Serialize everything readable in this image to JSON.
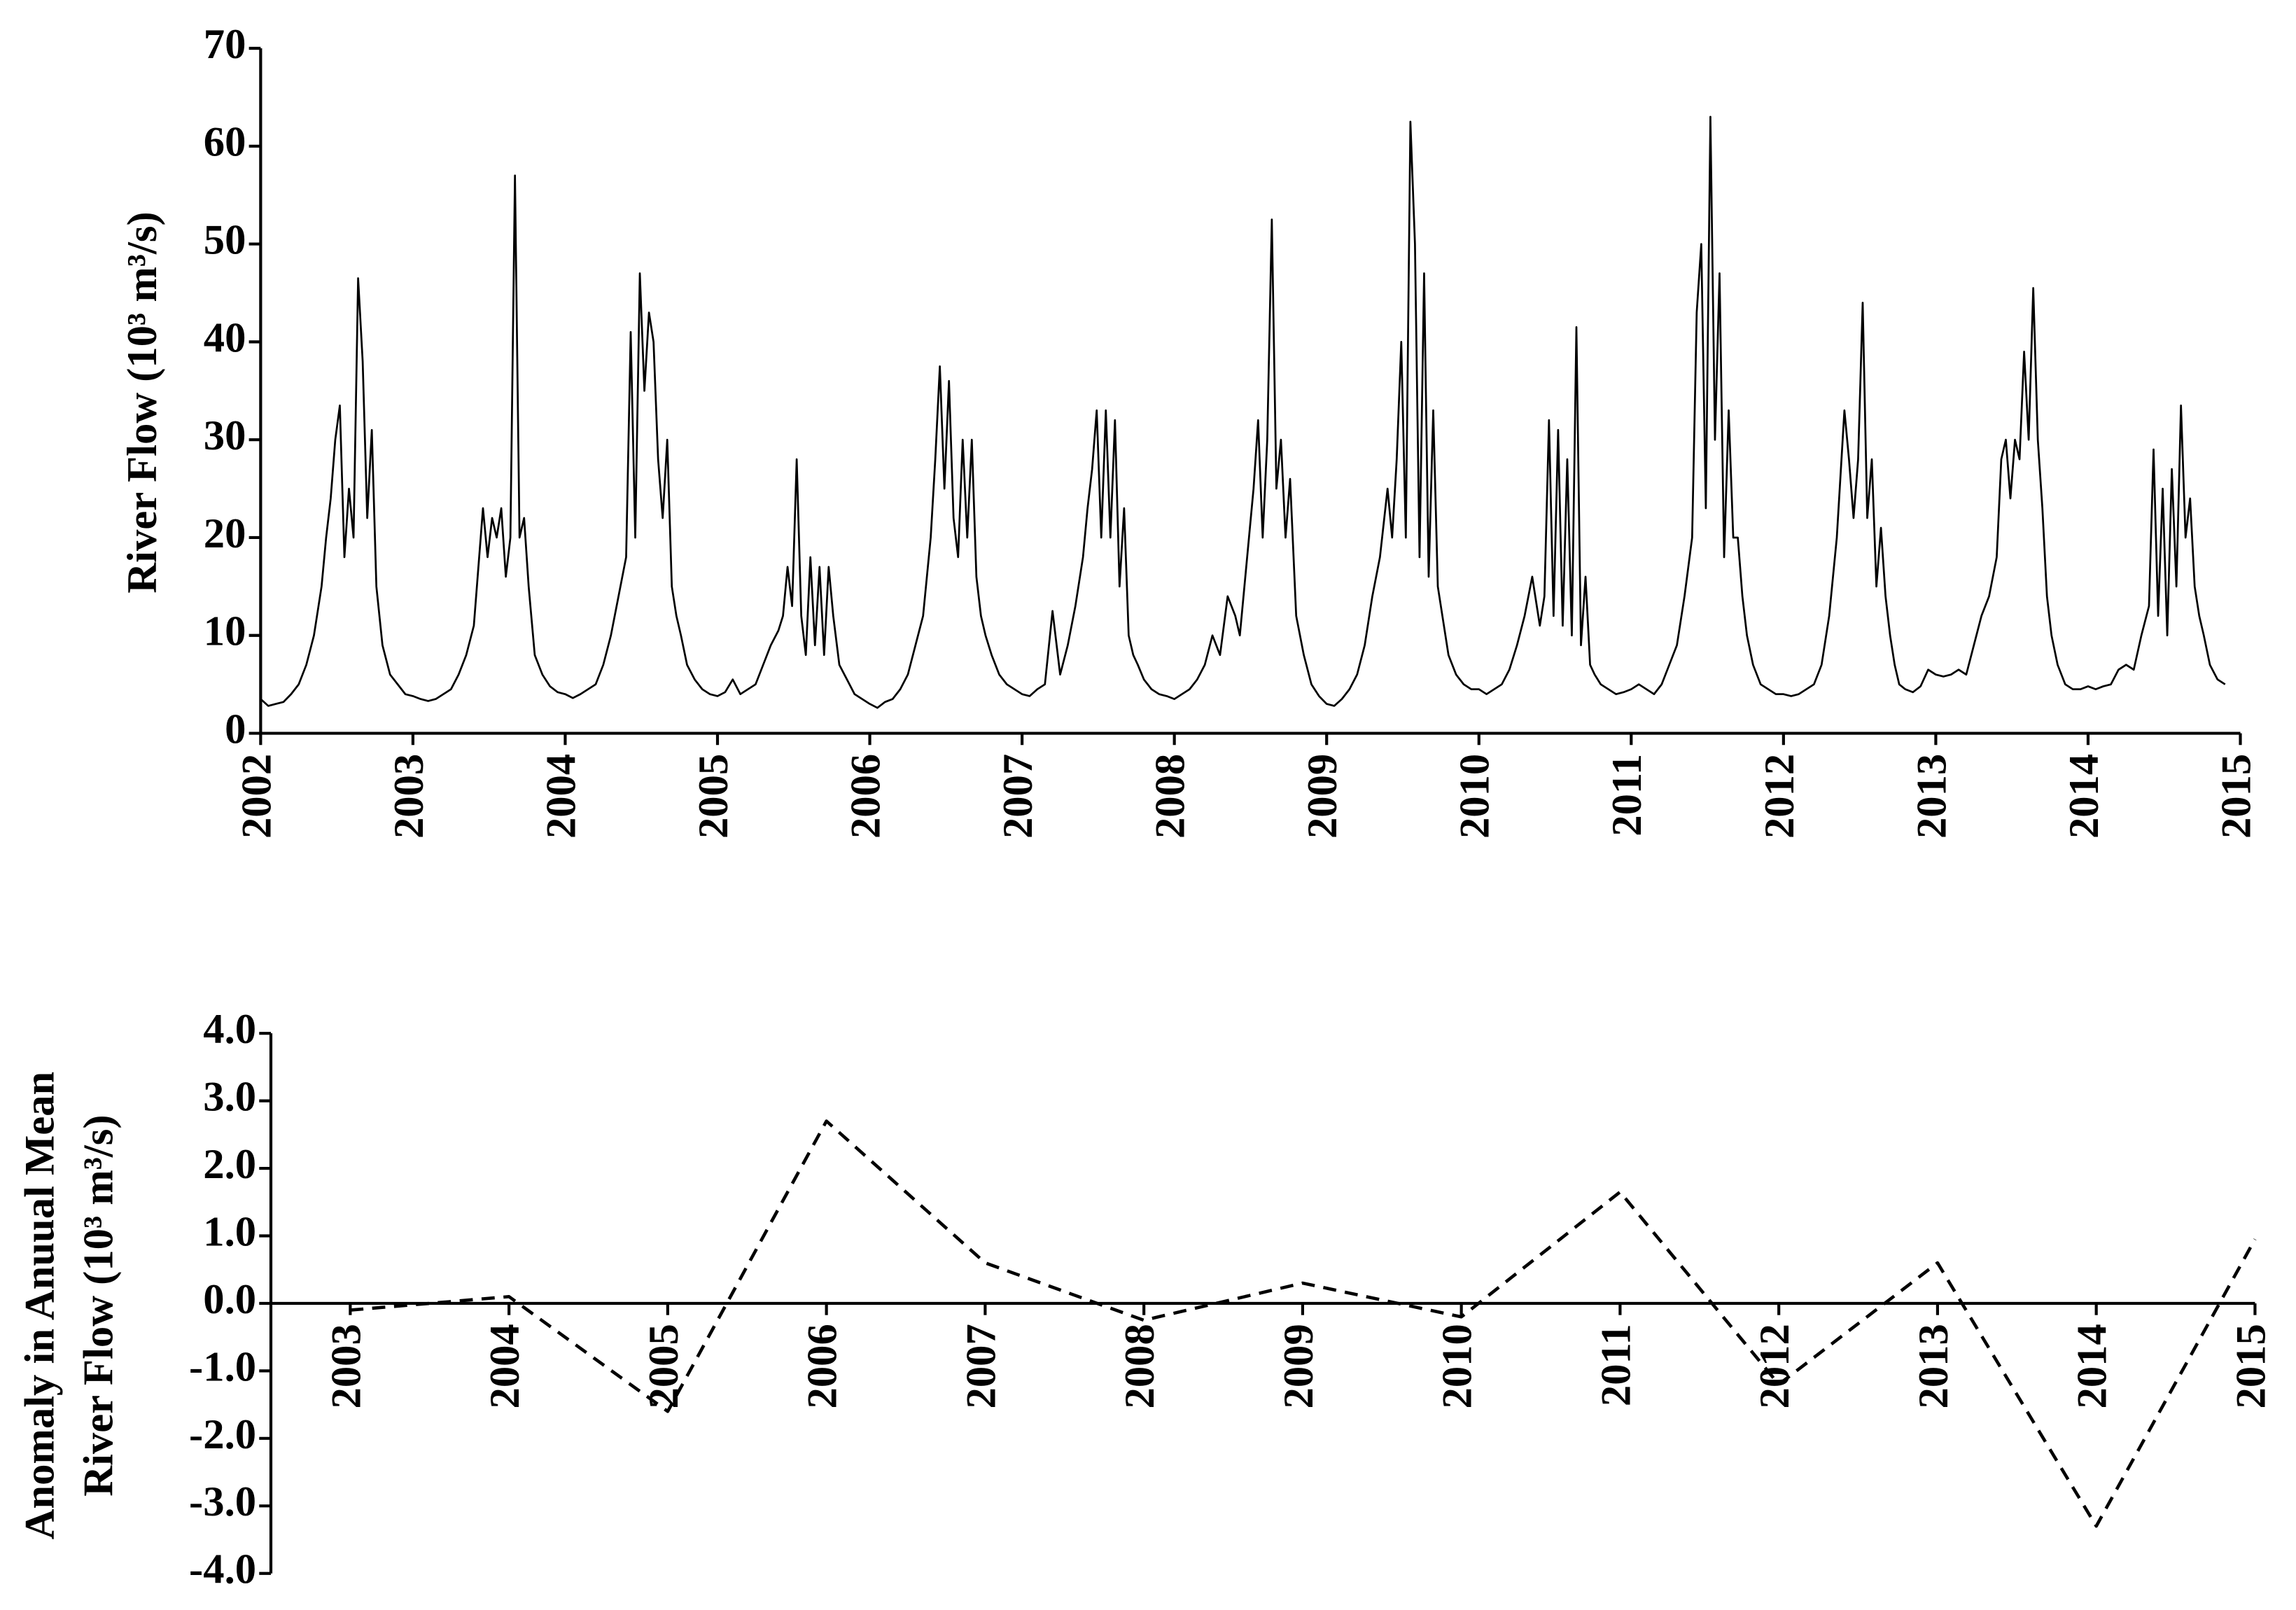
{
  "chart_data": [
    {
      "type": "line",
      "ylabel": "River Flow (10³ m³/s)",
      "xlim": [
        2002,
        2015
      ],
      "xticks": [
        2002,
        2003,
        2004,
        2005,
        2006,
        2007,
        2008,
        2009,
        2010,
        2011,
        2012,
        2013,
        2014,
        2015
      ],
      "ylim": [
        0,
        70
      ],
      "yticks": [
        0,
        10,
        20,
        30,
        40,
        50,
        60,
        70
      ],
      "color": "#000000",
      "x": [
        2002,
        2002.05,
        2002.1,
        2002.15,
        2002.2,
        2002.25,
        2002.3,
        2002.35,
        2002.4,
        2002.43,
        2002.46,
        2002.49,
        2002.52,
        2002.55,
        2002.58,
        2002.61,
        2002.64,
        2002.67,
        2002.7,
        2002.73,
        2002.76,
        2002.8,
        2002.85,
        2002.9,
        2002.95,
        2003,
        2003.05,
        2003.1,
        2003.15,
        2003.2,
        2003.25,
        2003.3,
        2003.35,
        2003.4,
        2003.43,
        2003.46,
        2003.49,
        2003.52,
        2003.55,
        2003.58,
        2003.61,
        2003.64,
        2003.67,
        2003.7,
        2003.73,
        2003.76,
        2003.8,
        2003.85,
        2003.9,
        2003.95,
        2004,
        2004.05,
        2004.1,
        2004.15,
        2004.2,
        2004.25,
        2004.3,
        2004.35,
        2004.4,
        2004.43,
        2004.46,
        2004.49,
        2004.52,
        2004.55,
        2004.58,
        2004.61,
        2004.64,
        2004.67,
        2004.7,
        2004.73,
        2004.76,
        2004.8,
        2004.85,
        2004.9,
        2004.95,
        2005,
        2005.05,
        2005.1,
        2005.15,
        2005.2,
        2005.25,
        2005.3,
        2005.35,
        2005.4,
        2005.43,
        2005.46,
        2005.49,
        2005.52,
        2005.55,
        2005.58,
        2005.61,
        2005.64,
        2005.67,
        2005.7,
        2005.73,
        2005.76,
        2005.8,
        2005.85,
        2005.9,
        2005.95,
        2006,
        2006.05,
        2006.1,
        2006.15,
        2006.2,
        2006.25,
        2006.3,
        2006.35,
        2006.4,
        2006.43,
        2006.46,
        2006.49,
        2006.52,
        2006.55,
        2006.58,
        2006.61,
        2006.64,
        2006.67,
        2006.7,
        2006.73,
        2006.76,
        2006.8,
        2006.85,
        2006.9,
        2006.95,
        2007,
        2007.05,
        2007.1,
        2007.15,
        2007.2,
        2007.25,
        2007.3,
        2007.35,
        2007.4,
        2007.43,
        2007.46,
        2007.49,
        2007.52,
        2007.55,
        2007.58,
        2007.61,
        2007.64,
        2007.67,
        2007.7,
        2007.73,
        2007.76,
        2007.8,
        2007.85,
        2007.9,
        2007.95,
        2008,
        2008.05,
        2008.1,
        2008.15,
        2008.2,
        2008.25,
        2008.3,
        2008.35,
        2008.4,
        2008.43,
        2008.46,
        2008.49,
        2008.52,
        2008.55,
        2008.58,
        2008.61,
        2008.64,
        2008.67,
        2008.7,
        2008.73,
        2008.76,
        2008.8,
        2008.85,
        2008.9,
        2008.95,
        2009,
        2009.05,
        2009.1,
        2009.15,
        2009.2,
        2009.25,
        2009.3,
        2009.35,
        2009.4,
        2009.43,
        2009.46,
        2009.49,
        2009.52,
        2009.55,
        2009.58,
        2009.61,
        2009.64,
        2009.67,
        2009.7,
        2009.73,
        2009.76,
        2009.8,
        2009.85,
        2009.9,
        2009.95,
        2010,
        2010.05,
        2010.1,
        2010.15,
        2010.2,
        2010.25,
        2010.3,
        2010.35,
        2010.4,
        2010.43,
        2010.46,
        2010.49,
        2010.52,
        2010.55,
        2010.58,
        2010.61,
        2010.64,
        2010.67,
        2010.7,
        2010.73,
        2010.76,
        2010.8,
        2010.85,
        2010.9,
        2010.95,
        2011,
        2011.05,
        2011.1,
        2011.15,
        2011.2,
        2011.25,
        2011.3,
        2011.35,
        2011.4,
        2011.43,
        2011.46,
        2011.49,
        2011.52,
        2011.55,
        2011.58,
        2011.61,
        2011.64,
        2011.67,
        2011.7,
        2011.73,
        2011.76,
        2011.8,
        2011.85,
        2011.9,
        2011.95,
        2012,
        2012.05,
        2012.1,
        2012.15,
        2012.2,
        2012.25,
        2012.3,
        2012.35,
        2012.4,
        2012.43,
        2012.46,
        2012.49,
        2012.52,
        2012.55,
        2012.58,
        2012.61,
        2012.64,
        2012.67,
        2012.7,
        2012.73,
        2012.76,
        2012.8,
        2012.85,
        2012.9,
        2012.95,
        2013,
        2013.05,
        2013.1,
        2013.15,
        2013.2,
        2013.25,
        2013.3,
        2013.35,
        2013.4,
        2013.43,
        2013.46,
        2013.49,
        2013.52,
        2013.55,
        2013.58,
        2013.61,
        2013.64,
        2013.67,
        2013.7,
        2013.73,
        2013.76,
        2013.8,
        2013.85,
        2013.9,
        2013.95,
        2014,
        2014.05,
        2014.1,
        2014.15,
        2014.2,
        2014.25,
        2014.3,
        2014.35,
        2014.4,
        2014.43,
        2014.46,
        2014.49,
        2014.52,
        2014.55,
        2014.58,
        2014.61,
        2014.64,
        2014.67,
        2014.7,
        2014.73,
        2014.76,
        2014.8,
        2014.85,
        2014.9
      ],
      "values": [
        3.5,
        2.8,
        3.0,
        3.2,
        4,
        5,
        7,
        10,
        15,
        20,
        24,
        30,
        33.5,
        18,
        25,
        20,
        46.5,
        38,
        22,
        31,
        15,
        9,
        6,
        5,
        4,
        3.8,
        3.5,
        3.3,
        3.5,
        4,
        4.5,
        6,
        8,
        11,
        17,
        23,
        18,
        22,
        20,
        23,
        16,
        20,
        57,
        20,
        22,
        15,
        8,
        6,
        4.8,
        4.2,
        4,
        3.6,
        4,
        4.5,
        5,
        7,
        10,
        14,
        18,
        41,
        20,
        47,
        35,
        43,
        40,
        28,
        22,
        30,
        15,
        12,
        10,
        7,
        5.5,
        4.5,
        4,
        3.8,
        4.2,
        5.5,
        4,
        4.5,
        5,
        7,
        9,
        10.5,
        12,
        17,
        13,
        28,
        12,
        8,
        18,
        9,
        17,
        8,
        17,
        12,
        7,
        5.5,
        4,
        3.5,
        3,
        2.6,
        3.2,
        3.5,
        4.5,
        6,
        9,
        12,
        20,
        28,
        37.5,
        25,
        36,
        22,
        18,
        30,
        20,
        30,
        16,
        12,
        10,
        8,
        6,
        5,
        4.5,
        4,
        3.8,
        4.5,
        5,
        12.5,
        6,
        9,
        13,
        18,
        23,
        27,
        33,
        20,
        33,
        20,
        32,
        15,
        23,
        10,
        8,
        7,
        5.5,
        4.5,
        4,
        3.8,
        3.5,
        4,
        4.5,
        5.5,
        7,
        10,
        8,
        14,
        12,
        10,
        15,
        20,
        25,
        32,
        20,
        30,
        52.5,
        25,
        30,
        20,
        26,
        12,
        8,
        5,
        3.8,
        3,
        2.8,
        3.5,
        4.5,
        6,
        9,
        14,
        18,
        25,
        20,
        28,
        40,
        20,
        62.5,
        50,
        18,
        47,
        16,
        33,
        15,
        12,
        8,
        6,
        5,
        4.5,
        4.5,
        4,
        4.5,
        5,
        6.5,
        9,
        12,
        16,
        11,
        14,
        32,
        12,
        31,
        11,
        28,
        10,
        41.5,
        9,
        16,
        7,
        6,
        5,
        4.5,
        4,
        4.2,
        4.5,
        5,
        4.5,
        4,
        5,
        7,
        9,
        14,
        20,
        43,
        50,
        23,
        63,
        30,
        47,
        18,
        33,
        20,
        20,
        14,
        10,
        7,
        5,
        4.5,
        4,
        4,
        3.8,
        4,
        4.5,
        5,
        7,
        12,
        20,
        33,
        28,
        22,
        28,
        44,
        22,
        28,
        15,
        21,
        14,
        10,
        7,
        5,
        4.5,
        4.2,
        4.8,
        6.5,
        6,
        5.8,
        6,
        6.5,
        6,
        9,
        12,
        14,
        18,
        28,
        30,
        24,
        30,
        28,
        39,
        30,
        45.5,
        30,
        23,
        14,
        10,
        7,
        5,
        4.5,
        4.5,
        4.8,
        4.5,
        4.8,
        5,
        6.5,
        7,
        6.5,
        10,
        13,
        29,
        12,
        25,
        10,
        27,
        15,
        33.5,
        20,
        24,
        15,
        12,
        10,
        7,
        5.5,
        5
      ]
    },
    {
      "type": "line",
      "ylabel": [
        "Anomaly in Anuual Mean",
        "River Flow  (10³ m³/s)"
      ],
      "xlim": [
        2002.5,
        2015
      ],
      "xticks": [
        2003,
        2004,
        2005,
        2006,
        2007,
        2008,
        2009,
        2010,
        2011,
        2012,
        2013,
        2014,
        2015
      ],
      "ylim": [
        -4,
        4
      ],
      "yticks": [
        {
          "value": 4,
          "label": "4.0"
        },
        {
          "value": 3,
          "label": "3.0"
        },
        {
          "value": 2,
          "label": "2.0"
        },
        {
          "value": 1,
          "label": "1.0"
        },
        {
          "value": 0,
          "label": "0.0"
        },
        {
          "value": -1,
          "label": "-1.0"
        },
        {
          "value": -2,
          "label": "-2.0"
        },
        {
          "value": -3,
          "label": "-3.0"
        },
        {
          "value": -4,
          "label": "-4.0"
        }
      ],
      "color": "#000000",
      "dashed": true,
      "x": [
        2003,
        2004,
        2005,
        2006,
        2007,
        2008,
        2009,
        2010,
        2011,
        2012,
        2013,
        2014,
        2015
      ],
      "values": [
        -0.1,
        0.1,
        -1.6,
        2.7,
        0.6,
        -0.25,
        0.3,
        -0.2,
        1.65,
        -1.2,
        0.6,
        -3.3,
        0.95
      ]
    }
  ]
}
